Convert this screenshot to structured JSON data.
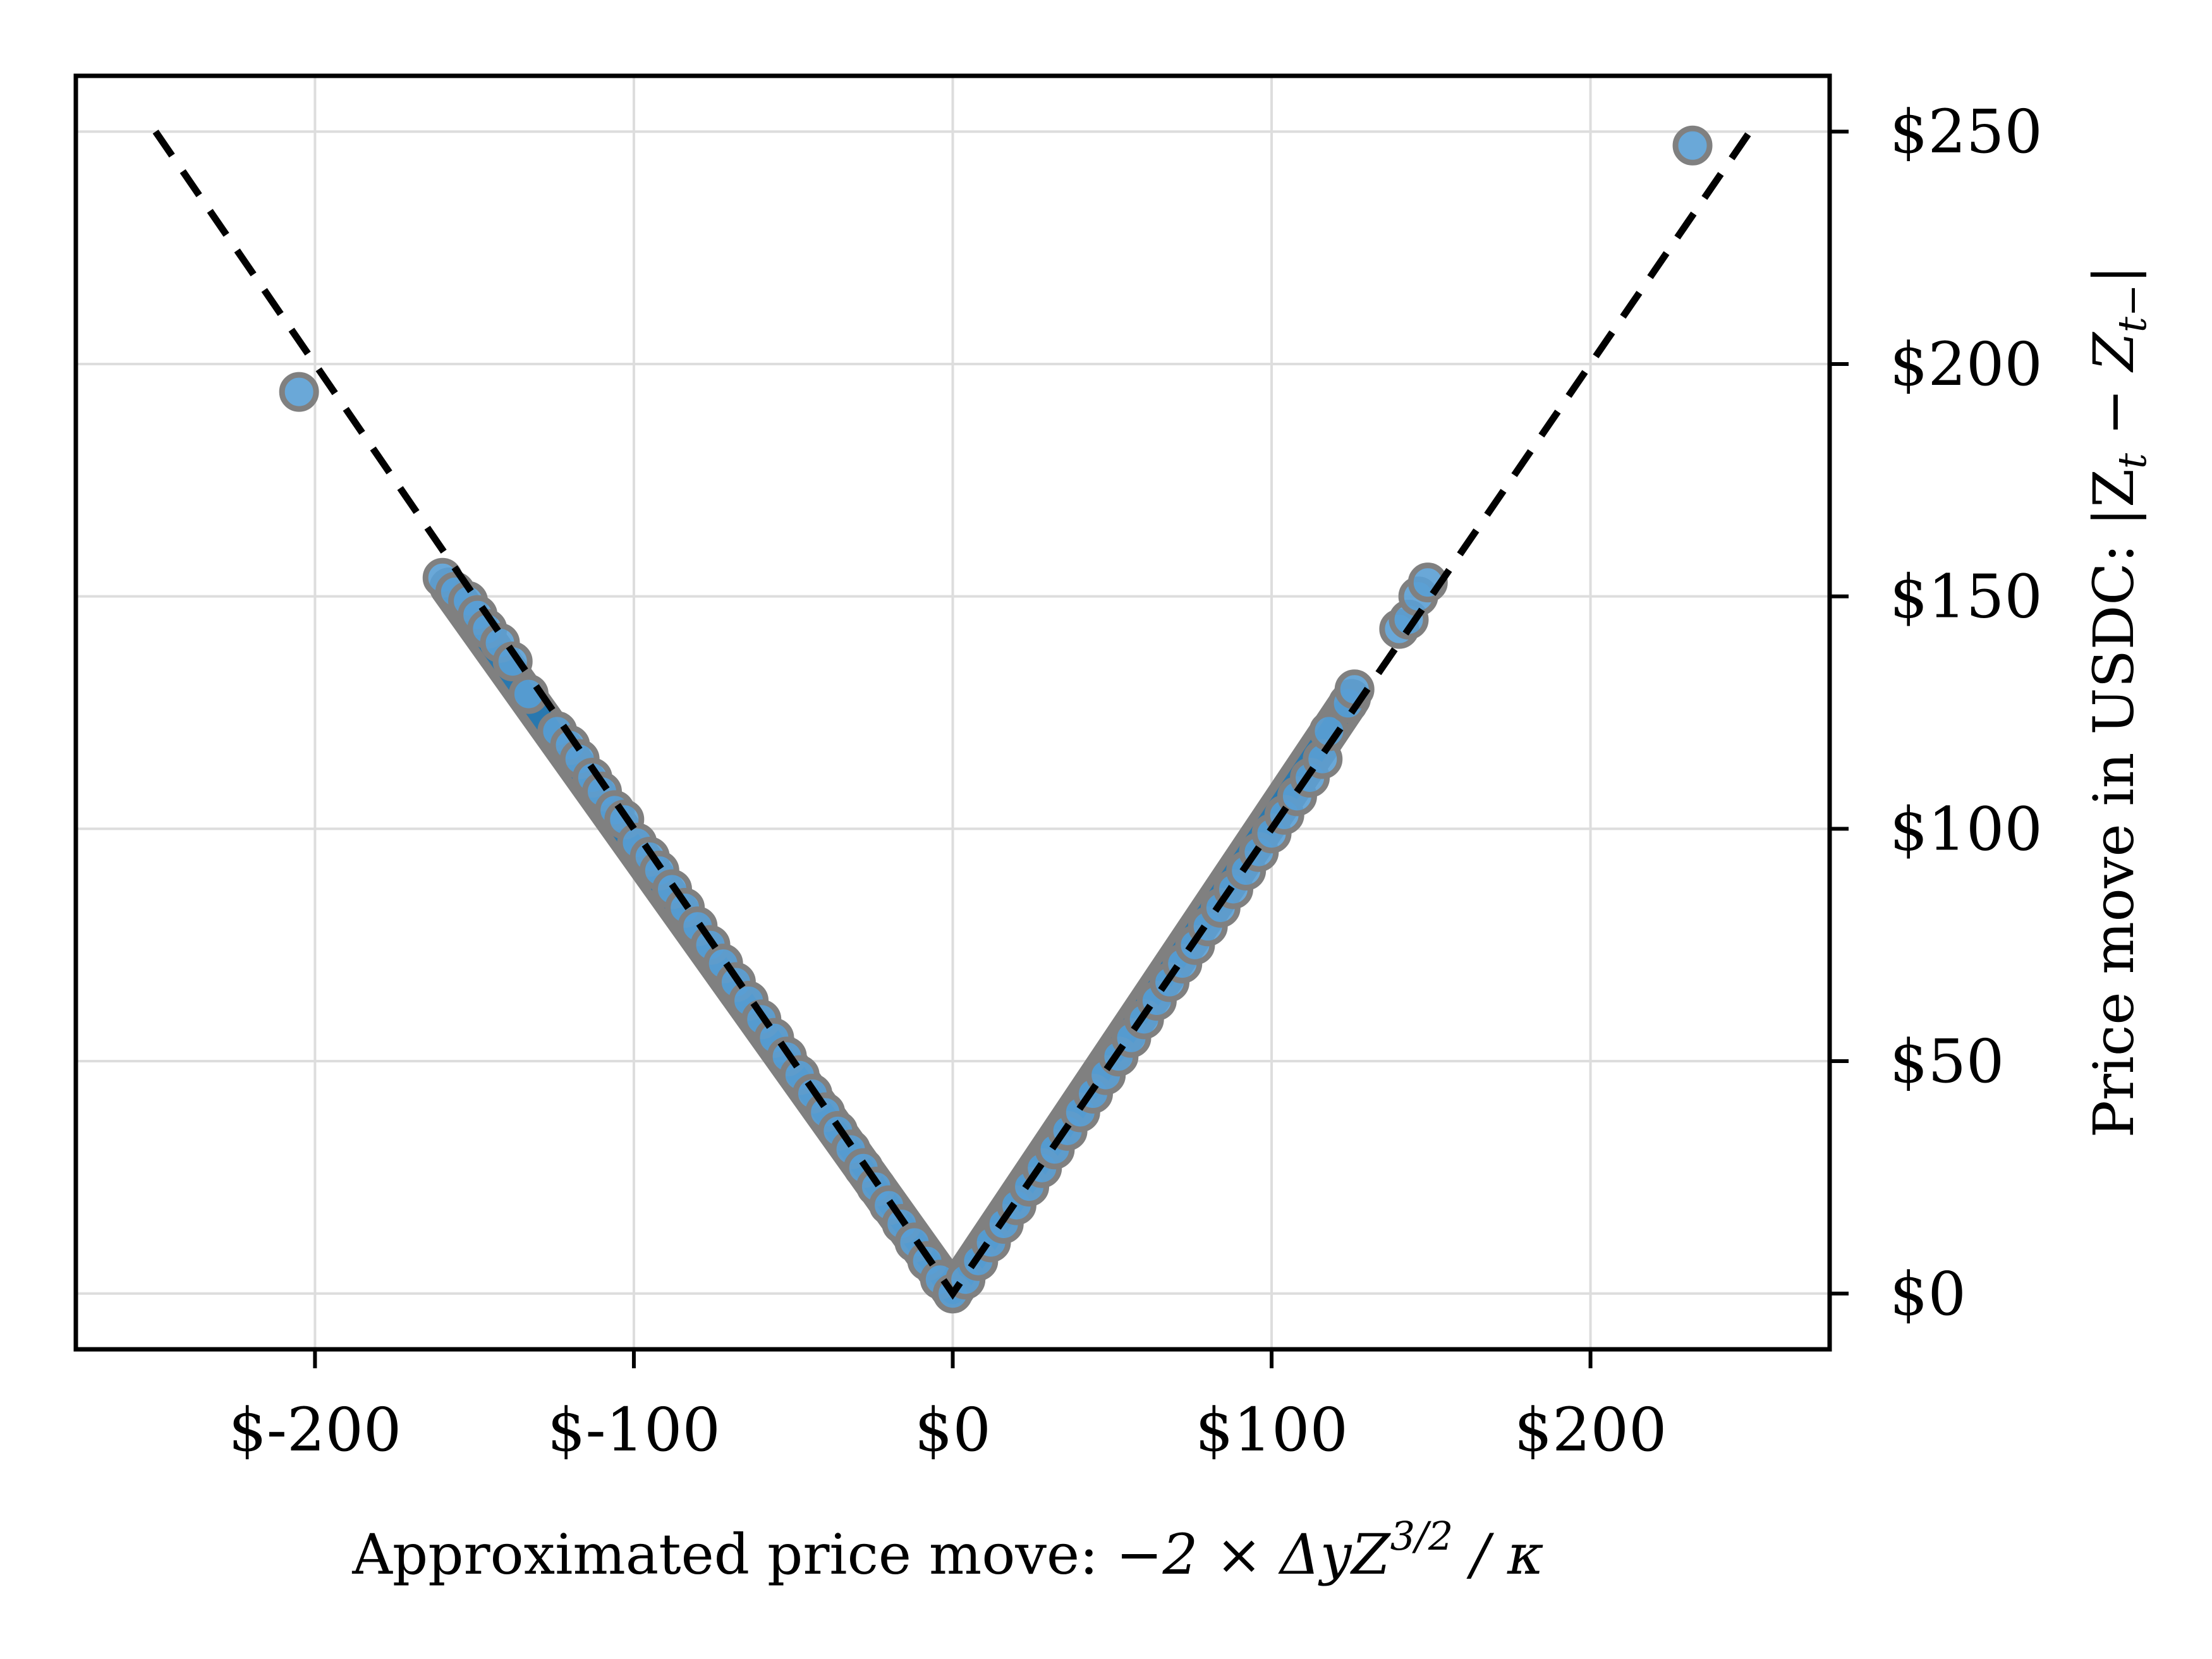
{
  "chart_data": {
    "type": "scatter",
    "xlabel": "Approximated price move: −2 × ΔyZ3/2 / κ",
    "ylabel": "Price move in USDC: |Zt − Zt−|",
    "xlabel_parts": {
      "prefix": "Approximated price move: ",
      "formula": "−2 × ΔyZ",
      "exp": "3/2",
      "suffix": " / κ"
    },
    "ylabel_parts": {
      "prefix": "Price move in USDC: |Z",
      "sub1": "t",
      "mid": " − Z",
      "sub2": "t−",
      "suffix": "|"
    },
    "xlim": [
      -275,
      275
    ],
    "ylim": [
      -12,
      262
    ],
    "x_ticks": [
      -200,
      -100,
      0,
      100,
      200
    ],
    "x_tick_labels": [
      "$-200",
      "$-100",
      "$0",
      "$100",
      "$200"
    ],
    "y_ticks": [
      0,
      50,
      100,
      150,
      200,
      250
    ],
    "y_tick_labels": [
      "$0",
      "$50",
      "$100",
      "$150",
      "$200",
      "$250"
    ],
    "y_axis_side": "right",
    "grid": true,
    "reference_line": {
      "style": "dashed",
      "color": "#000000",
      "x": [
        -250,
        0,
        250
      ],
      "y": [
        250,
        0,
        250
      ]
    },
    "colors": {
      "marker_face": "#5a9fd4",
      "marker_edge": "#808080",
      "dense_fill": "#1f77b4"
    },
    "points": [
      {
        "x": -205,
        "y": 194
      },
      {
        "x": -160,
        "y": 154
      },
      {
        "x": -156,
        "y": 151
      },
      {
        "x": -152,
        "y": 149
      },
      {
        "x": -149,
        "y": 146
      },
      {
        "x": -146,
        "y": 143
      },
      {
        "x": -142,
        "y": 140
      },
      {
        "x": -138,
        "y": 136
      },
      {
        "x": -133,
        "y": 129
      },
      {
        "x": -124,
        "y": 121
      },
      {
        "x": -120,
        "y": 118
      },
      {
        "x": -117,
        "y": 115
      },
      {
        "x": -113,
        "y": 111
      },
      {
        "x": -110,
        "y": 108
      },
      {
        "x": -106,
        "y": 104
      },
      {
        "x": -103,
        "y": 102
      },
      {
        "x": -99,
        "y": 97
      },
      {
        "x": -95,
        "y": 94
      },
      {
        "x": -92,
        "y": 91
      },
      {
        "x": -88,
        "y": 87
      },
      {
        "x": -84,
        "y": 83
      },
      {
        "x": -80,
        "y": 79
      },
      {
        "x": -76,
        "y": 75
      },
      {
        "x": -72,
        "y": 71
      },
      {
        "x": -68,
        "y": 67
      },
      {
        "x": -64,
        "y": 63
      },
      {
        "x": -60,
        "y": 59
      },
      {
        "x": -56,
        "y": 55
      },
      {
        "x": -52,
        "y": 51
      },
      {
        "x": -48,
        "y": 47
      },
      {
        "x": -44,
        "y": 43
      },
      {
        "x": -40,
        "y": 39
      },
      {
        "x": -36,
        "y": 35
      },
      {
        "x": -32,
        "y": 31
      },
      {
        "x": -28,
        "y": 27
      },
      {
        "x": -24,
        "y": 23
      },
      {
        "x": -20,
        "y": 19
      },
      {
        "x": -16,
        "y": 15
      },
      {
        "x": -12,
        "y": 11
      },
      {
        "x": -8,
        "y": 7
      },
      {
        "x": -4,
        "y": 3
      },
      {
        "x": 0,
        "y": 0
      },
      {
        "x": 4,
        "y": 3
      },
      {
        "x": 8,
        "y": 7
      },
      {
        "x": 12,
        "y": 11
      },
      {
        "x": 16,
        "y": 15
      },
      {
        "x": 20,
        "y": 19
      },
      {
        "x": 24,
        "y": 23
      },
      {
        "x": 28,
        "y": 27
      },
      {
        "x": 32,
        "y": 31
      },
      {
        "x": 36,
        "y": 35
      },
      {
        "x": 40,
        "y": 39
      },
      {
        "x": 44,
        "y": 43
      },
      {
        "x": 48,
        "y": 47
      },
      {
        "x": 52,
        "y": 51
      },
      {
        "x": 56,
        "y": 55
      },
      {
        "x": 60,
        "y": 59
      },
      {
        "x": 64,
        "y": 63
      },
      {
        "x": 68,
        "y": 67
      },
      {
        "x": 72,
        "y": 71
      },
      {
        "x": 76,
        "y": 75
      },
      {
        "x": 80,
        "y": 79
      },
      {
        "x": 84,
        "y": 83
      },
      {
        "x": 88,
        "y": 87
      },
      {
        "x": 92,
        "y": 91
      },
      {
        "x": 96,
        "y": 95
      },
      {
        "x": 100,
        "y": 99
      },
      {
        "x": 104,
        "y": 103
      },
      {
        "x": 108,
        "y": 107
      },
      {
        "x": 112,
        "y": 111
      },
      {
        "x": 116,
        "y": 115
      },
      {
        "x": 118,
        "y": 121
      },
      {
        "x": 124,
        "y": 127
      },
      {
        "x": 126,
        "y": 130
      },
      {
        "x": 140,
        "y": 143
      },
      {
        "x": 143,
        "y": 145
      },
      {
        "x": 146,
        "y": 150
      },
      {
        "x": 149,
        "y": 153
      },
      {
        "x": 232,
        "y": 247
      }
    ]
  }
}
